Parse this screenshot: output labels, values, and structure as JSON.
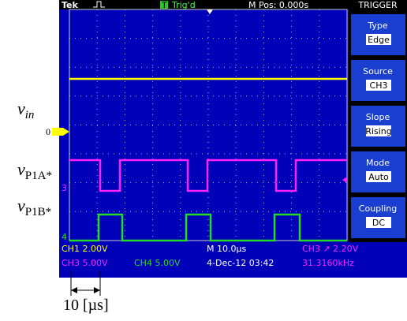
{
  "header": {
    "brand": "Tek",
    "trigger_state": "Trig'd",
    "position": "M Pos: 0.000s",
    "menu_title": "TRIGGER"
  },
  "menu": [
    {
      "label": "Type",
      "value": "Edge"
    },
    {
      "label": "Source",
      "value": "CH3"
    },
    {
      "label": "Slope",
      "value": "Rising"
    },
    {
      "label": "Mode",
      "value": "Auto"
    },
    {
      "label": "Coupling",
      "value": "DC"
    }
  ],
  "footer": {
    "ch1": "CH1  2.00V",
    "timebase": "M 10.0µs",
    "trigger": "CH3 ↗ 2.20V",
    "ch3": "CH3  5.00V",
    "ch4": "CH4  5.00V",
    "date": "4-Dec-12 03:42",
    "frequency": "31.3160kHz"
  },
  "markers": {
    "ch1": "0",
    "ch3": "3",
    "ch4": "4",
    "trigger": "T"
  },
  "labels": [
    {
      "symbol": "v",
      "subscript": "in"
    },
    {
      "symbol": "v",
      "subscript": "P1A*"
    },
    {
      "symbol": "v",
      "subscript": "P1B*"
    }
  ],
  "scale_bar": "10 [µs]"
}
